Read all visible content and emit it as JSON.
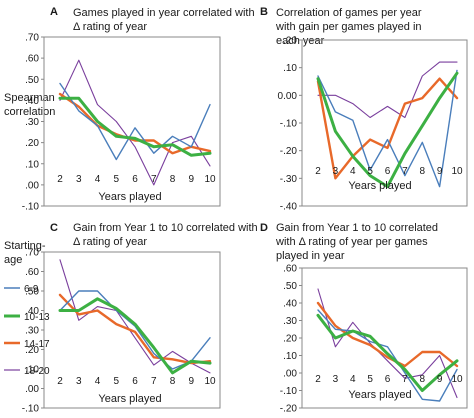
{
  "left_label": [
    "Spearman",
    "correlation"
  ],
  "legend": {
    "title": [
      "Starting-",
      "age"
    ],
    "entries": [
      {
        "name": "6-9",
        "color": "#4a7ebb"
      },
      {
        "name": "10-13",
        "color": "#3cb043"
      },
      {
        "name": "14-17",
        "color": "#e8692a"
      },
      {
        "name": "18-20",
        "color": "#7a3f9d"
      }
    ]
  },
  "chart_data": [
    {
      "type": "line",
      "letter": "A",
      "title": [
        "Games played in year correlated with",
        "Δ rating of year"
      ],
      "xlabel": "Years played",
      "x": [
        2,
        3,
        4,
        5,
        6,
        7,
        8,
        9,
        10
      ],
      "xlim": [
        2,
        10
      ],
      "ylim": [
        -0.1,
        0.7
      ],
      "yticks": [
        ".70",
        ".60",
        ".50",
        ".40",
        ".30",
        ".20",
        ".10",
        ".00",
        "-.10"
      ],
      "series": [
        {
          "name": "6-9",
          "values": [
            0.48,
            0.35,
            0.28,
            0.12,
            0.27,
            0.15,
            0.23,
            0.18,
            0.38
          ]
        },
        {
          "name": "10-13",
          "values": [
            0.41,
            0.41,
            0.3,
            0.23,
            0.22,
            0.18,
            0.19,
            0.14,
            0.15
          ]
        },
        {
          "name": "14-17",
          "values": [
            0.43,
            0.37,
            0.28,
            0.24,
            0.21,
            0.21,
            0.15,
            0.18,
            0.16
          ]
        },
        {
          "name": "18-20",
          "values": [
            0.4,
            0.59,
            0.38,
            0.3,
            0.18,
            0.0,
            0.2,
            0.23,
            0.09
          ]
        }
      ]
    },
    {
      "type": "line",
      "letter": "B",
      "title": [
        "Correlation of games per year",
        "with  gain per games played in",
        "each year"
      ],
      "xlabel": "Years played",
      "x": [
        2,
        3,
        4,
        5,
        6,
        7,
        8,
        9,
        10
      ],
      "xlim": [
        2,
        10
      ],
      "ylim": [
        -0.4,
        0.2
      ],
      "yticks": [
        ".20",
        ".10",
        "0.00",
        "-.10",
        "-.20",
        "-.30",
        "-.40"
      ],
      "series": [
        {
          "name": "6-9",
          "values": [
            0.07,
            -0.06,
            -0.09,
            -0.27,
            -0.16,
            -0.29,
            -0.17,
            -0.33,
            0.09
          ]
        },
        {
          "name": "10-13",
          "values": [
            0.06,
            -0.13,
            -0.22,
            -0.29,
            -0.33,
            -0.21,
            -0.11,
            -0.01,
            0.08
          ]
        },
        {
          "name": "14-17",
          "values": [
            0.05,
            -0.3,
            -0.22,
            -0.16,
            -0.19,
            -0.03,
            -0.01,
            0.06,
            -0.01
          ]
        },
        {
          "name": "18-20",
          "values": [
            0.0,
            0.0,
            -0.03,
            -0.08,
            -0.04,
            -0.08,
            0.07,
            0.12,
            0.12
          ]
        }
      ]
    },
    {
      "type": "line",
      "letter": "C",
      "title": [
        "Gain from Year 1 to 10 correlated with",
        "Δ rating of year"
      ],
      "xlabel": "Years played",
      "x": [
        2,
        3,
        4,
        5,
        6,
        7,
        8,
        9,
        10
      ],
      "xlim": [
        2,
        10
      ],
      "ylim": [
        -0.1,
        0.7
      ],
      "yticks": [
        ".70",
        ".60",
        ".50",
        ".40",
        ".30",
        ".20",
        ".10",
        ".00",
        "-.10"
      ],
      "series": [
        {
          "name": "6-9",
          "values": [
            0.4,
            0.5,
            0.5,
            0.4,
            0.32,
            0.18,
            0.1,
            0.14,
            0.26
          ]
        },
        {
          "name": "10-13",
          "values": [
            0.4,
            0.4,
            0.46,
            0.41,
            0.33,
            0.21,
            0.08,
            0.14,
            0.13
          ]
        },
        {
          "name": "14-17",
          "values": [
            0.48,
            0.38,
            0.4,
            0.33,
            0.29,
            0.16,
            0.15,
            0.13,
            0.14
          ]
        },
        {
          "name": "18-20",
          "values": [
            0.66,
            0.35,
            0.42,
            0.4,
            0.26,
            0.12,
            0.19,
            0.13,
            0.08
          ]
        }
      ]
    },
    {
      "type": "line",
      "letter": "D",
      "title": [
        "Gain from Year 1 to 10 correlated",
        "with  Δ rating of year per games",
        "played in year"
      ],
      "xlabel": "Years played",
      "x": [
        2,
        3,
        4,
        5,
        6,
        7,
        8,
        9,
        10
      ],
      "xlim": [
        2,
        10
      ],
      "ylim": [
        -0.2,
        0.6
      ],
      "yticks": [
        ".60",
        ".50",
        ".40",
        ".30",
        ".20",
        ".10",
        ".00",
        "-.10",
        "-.20"
      ],
      "series": [
        {
          "name": "6-9",
          "values": [
            0.36,
            0.25,
            0.24,
            0.18,
            0.15,
            0.0,
            -0.15,
            -0.16,
            0.02
          ]
        },
        {
          "name": "10-13",
          "values": [
            0.33,
            0.2,
            0.24,
            0.21,
            0.11,
            0.02,
            -0.1,
            -0.01,
            0.07
          ]
        },
        {
          "name": "14-17",
          "values": [
            0.4,
            0.27,
            0.2,
            0.16,
            0.09,
            0.04,
            0.12,
            0.12,
            0.04
          ]
        },
        {
          "name": "18-20",
          "values": [
            0.48,
            0.15,
            0.29,
            0.17,
            0.07,
            -0.03,
            -0.01,
            0.1,
            -0.14
          ]
        }
      ]
    }
  ]
}
